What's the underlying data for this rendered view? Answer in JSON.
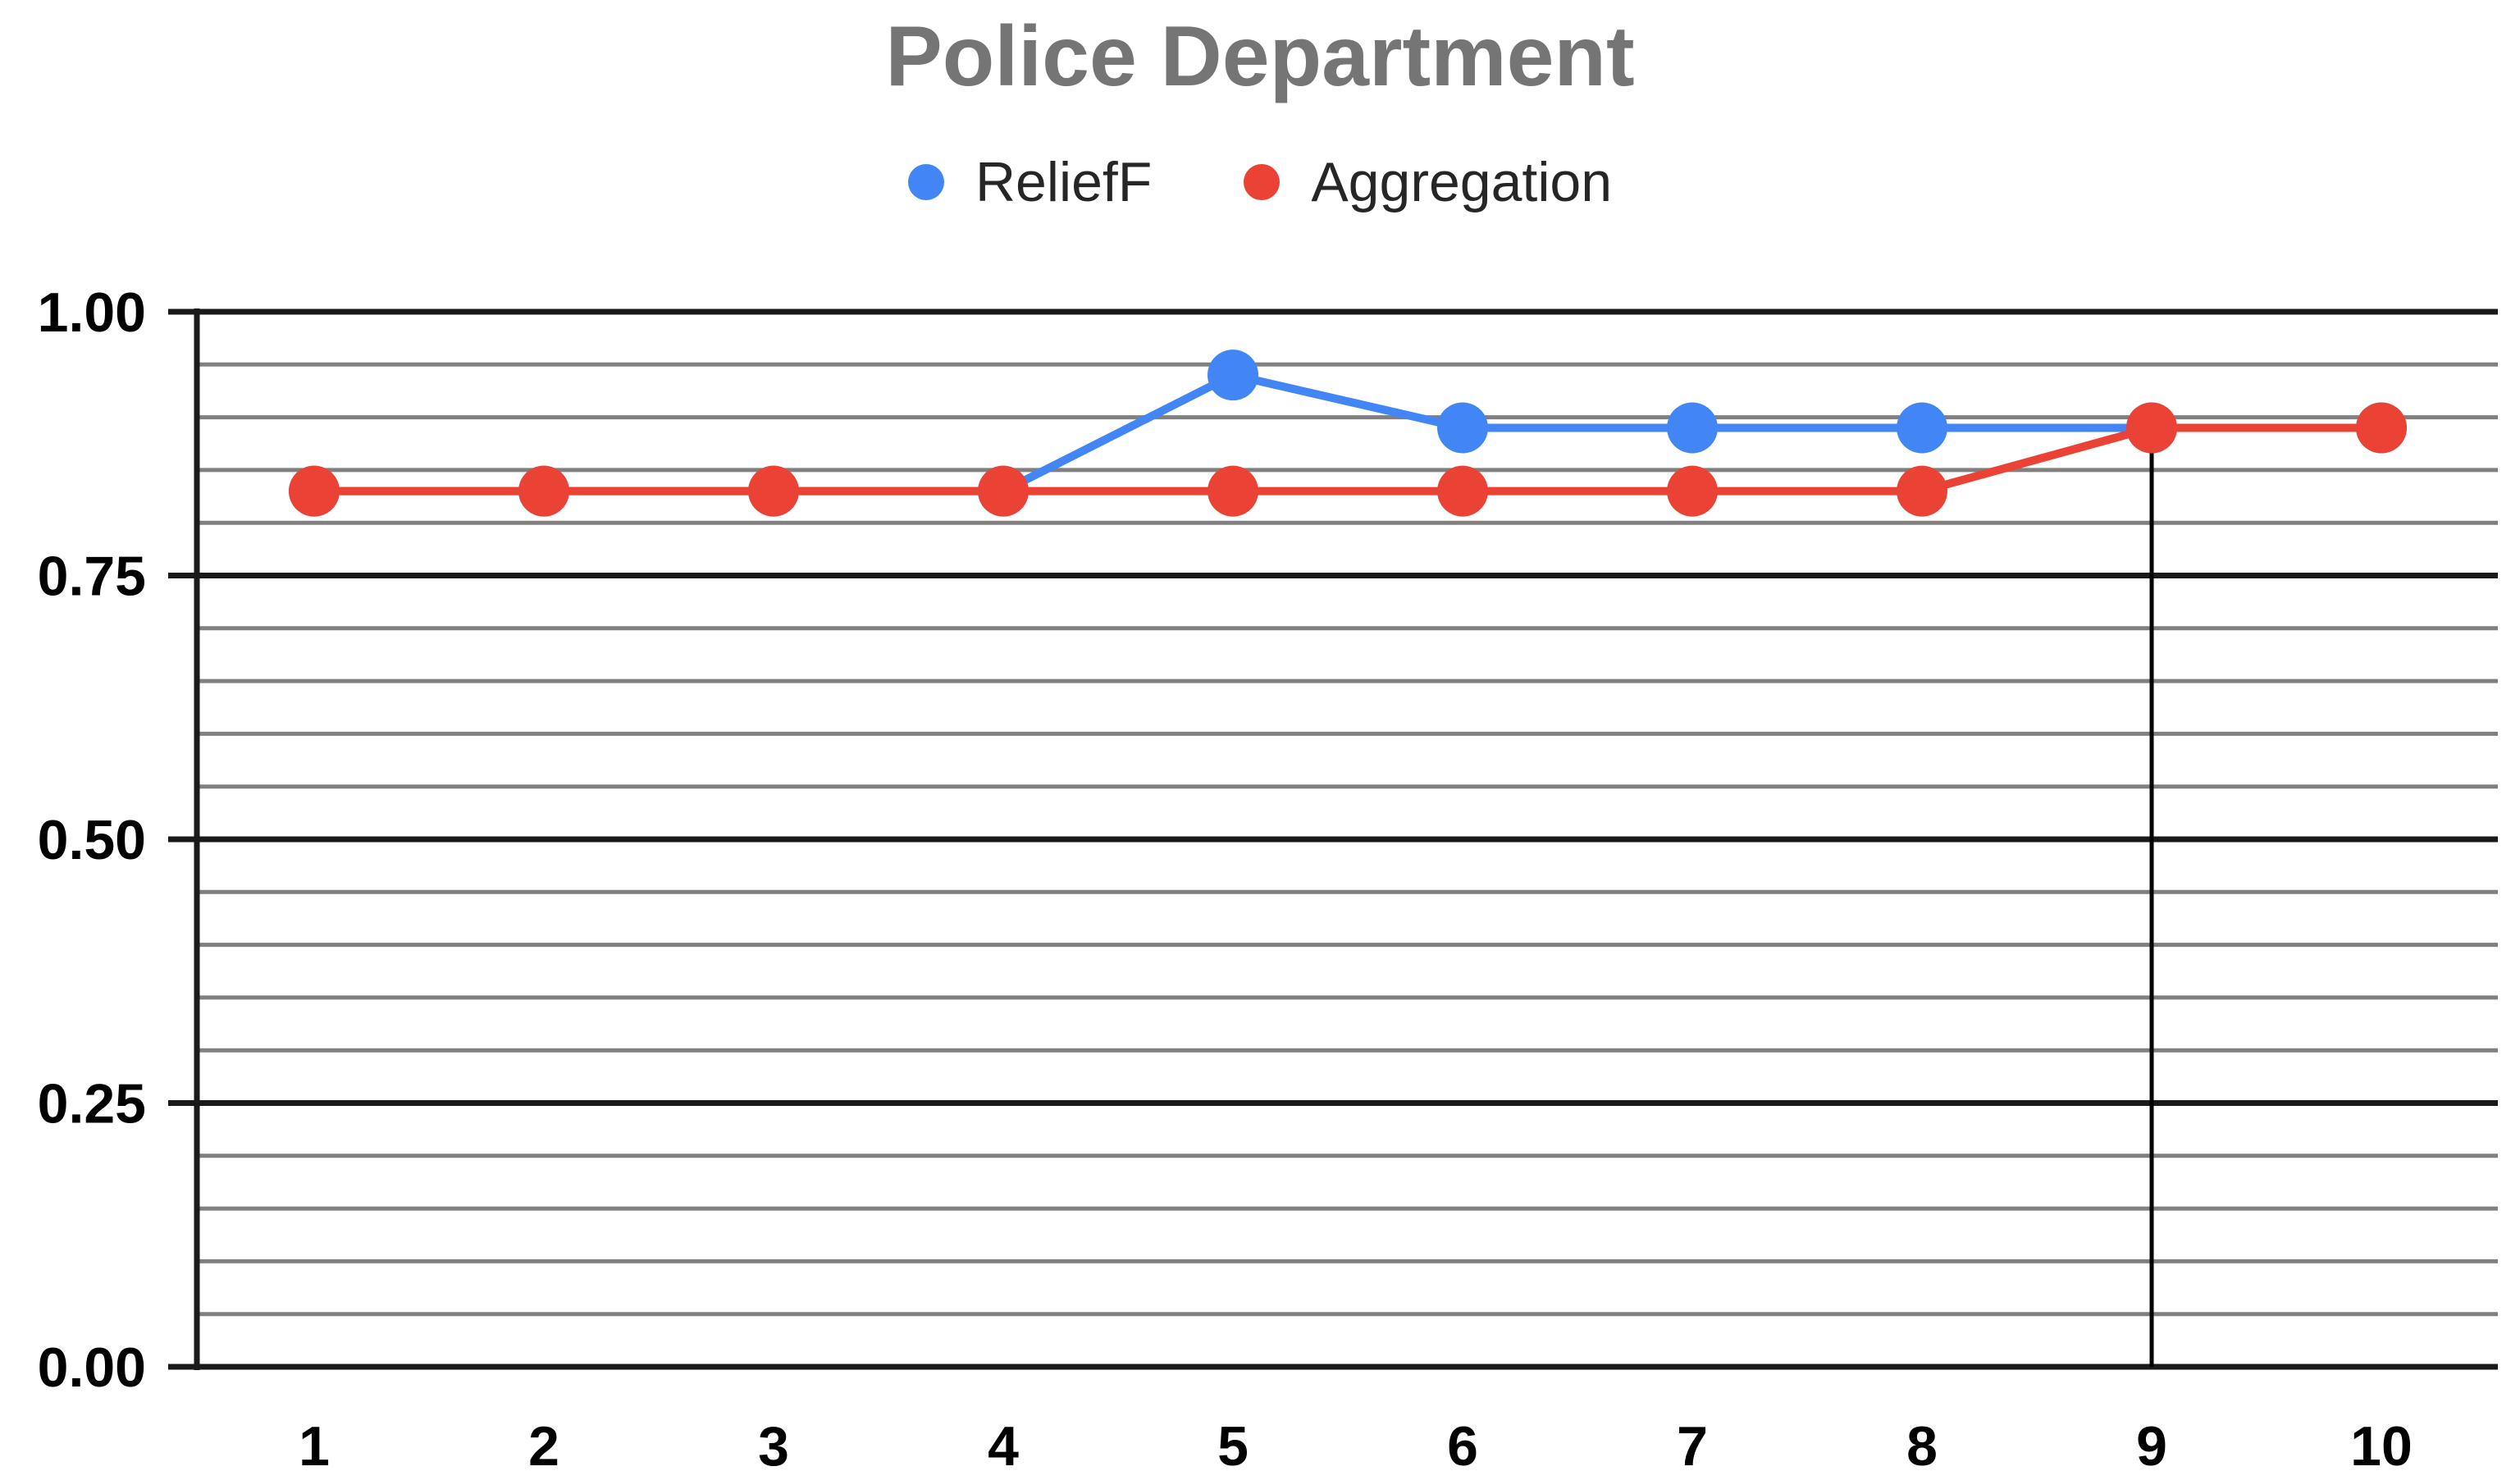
{
  "chart_data": {
    "type": "line",
    "title": "Police Department",
    "x": [
      1,
      2,
      3,
      4,
      5,
      6,
      7,
      8,
      9,
      10
    ],
    "series": [
      {
        "name": "ReliefF",
        "color": "#4285F4",
        "values": [
          0.83,
          0.83,
          0.83,
          0.83,
          0.94,
          0.89,
          0.89,
          0.89,
          0.89,
          0.89
        ]
      },
      {
        "name": "Aggregation",
        "color": "#EA4335",
        "values": [
          0.83,
          0.83,
          0.83,
          0.83,
          0.83,
          0.83,
          0.83,
          0.83,
          0.89,
          0.89
        ]
      }
    ],
    "xlabel": "",
    "ylabel": "",
    "ylim": [
      0,
      1
    ],
    "yticks_major": [
      0,
      0.25,
      0.5,
      0.75,
      1
    ],
    "ytick_labels": [
      "0.00",
      "0.25",
      "0.50",
      "0.75",
      "1.00"
    ],
    "minor_grid_step": 0.05,
    "grid": true,
    "legend_position": "top",
    "marker_line": {
      "x": 9,
      "from_value": 0.89,
      "to_value": 0
    },
    "colors": {
      "title": "#757575",
      "legend_text": "#262626",
      "axis_text": "#000000",
      "major_grid": "#1a1a1a",
      "minor_grid": "#808080",
      "marker_line": "#000000",
      "background": "#ffffff"
    }
  }
}
